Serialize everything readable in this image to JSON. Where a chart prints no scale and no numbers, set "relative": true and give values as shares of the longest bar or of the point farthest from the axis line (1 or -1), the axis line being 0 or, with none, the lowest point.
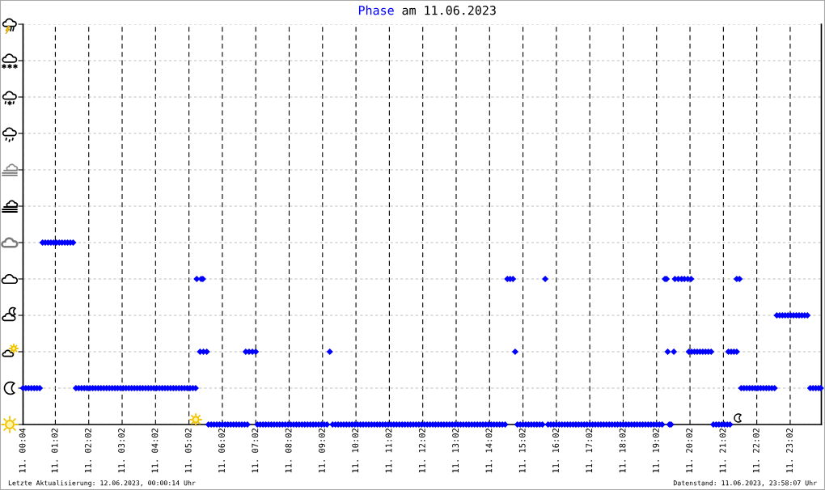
{
  "chart_data": {
    "type": "scatter",
    "title": "Phase am 11.06.2023",
    "relative": true,
    "x": [
      "2023-06-11T00:04",
      "2023-06-11T00:09",
      "2023-06-11T00:14",
      "2023-06-11T00:19",
      "2023-06-11T00:24",
      "2023-06-11T00:29",
      "2023-06-11T00:34",
      "2023-06-11T00:39",
      "2023-06-11T00:44",
      "2023-06-11T00:49",
      "2023-06-11T00:54",
      "2023-06-11T00:59",
      "2023-06-11T01:04",
      "2023-06-11T01:09",
      "2023-06-11T01:14",
      "2023-06-11T01:19",
      "2023-06-11T01:24",
      "2023-06-11T01:29",
      "2023-06-11T01:34",
      "2023-06-11T01:39",
      "2023-06-11T01:44",
      "2023-06-11T01:49",
      "2023-06-11T01:54",
      "2023-06-11T01:59",
      "2023-06-11T02:04",
      "2023-06-11T02:09",
      "2023-06-11T02:14",
      "2023-06-11T02:19",
      "2023-06-11T02:24",
      "2023-06-11T02:29",
      "2023-06-11T02:34",
      "2023-06-11T02:39",
      "2023-06-11T02:44",
      "2023-06-11T02:49",
      "2023-06-11T02:54",
      "2023-06-11T02:59",
      "2023-06-11T03:04",
      "2023-06-11T03:09",
      "2023-06-11T03:14",
      "2023-06-11T03:19",
      "2023-06-11T03:24",
      "2023-06-11T03:29",
      "2023-06-11T03:34",
      "2023-06-11T03:39",
      "2023-06-11T03:44",
      "2023-06-11T03:49",
      "2023-06-11T03:54",
      "2023-06-11T03:59",
      "2023-06-11T04:04",
      "2023-06-11T04:09",
      "2023-06-11T04:14",
      "2023-06-11T04:19",
      "2023-06-11T04:24",
      "2023-06-11T04:29",
      "2023-06-11T04:34",
      "2023-06-11T04:39",
      "2023-06-11T04:44",
      "2023-06-11T04:49",
      "2023-06-11T04:54",
      "2023-06-11T04:59",
      "2023-06-11T05:04",
      "2023-06-11T05:09",
      "2023-06-11T05:14",
      "2023-06-11T05:16",
      "2023-06-11T05:24",
      "2023-06-11T05:27",
      "2023-06-11T05:22",
      "2023-06-11T05:28",
      "2023-06-11T05:34",
      "2023-06-11T05:37",
      "2023-06-11T05:42",
      "2023-06-11T05:47",
      "2023-06-11T05:52",
      "2023-06-11T05:57",
      "2023-06-11T06:02",
      "2023-06-11T06:07",
      "2023-06-11T06:12",
      "2023-06-11T06:17",
      "2023-06-11T06:22",
      "2023-06-11T06:27",
      "2023-06-11T06:32",
      "2023-06-11T06:37",
      "2023-06-11T06:42",
      "2023-06-11T06:47",
      "2023-06-11T06:44",
      "2023-06-11T06:50",
      "2023-06-11T06:56",
      "2023-06-11T07:02",
      "2023-06-11T07:05",
      "2023-06-11T07:10",
      "2023-06-11T07:15",
      "2023-06-11T07:20",
      "2023-06-11T07:25",
      "2023-06-11T07:30",
      "2023-06-11T07:35",
      "2023-06-11T07:40",
      "2023-06-11T07:45",
      "2023-06-11T07:50",
      "2023-06-11T07:55",
      "2023-06-11T08:00",
      "2023-06-11T08:05",
      "2023-06-11T08:10",
      "2023-06-11T08:15",
      "2023-06-11T08:20",
      "2023-06-11T08:25",
      "2023-06-11T08:30",
      "2023-06-11T08:35",
      "2023-06-11T08:40",
      "2023-06-11T08:45",
      "2023-06-11T08:50",
      "2023-06-11T08:55",
      "2023-06-11T09:00",
      "2023-06-11T09:05",
      "2023-06-11T09:10",
      "2023-06-11T09:20",
      "2023-06-11T09:25",
      "2023-06-11T09:30",
      "2023-06-11T09:35",
      "2023-06-11T09:40",
      "2023-06-11T09:45",
      "2023-06-11T09:50",
      "2023-06-11T09:55",
      "2023-06-11T10:00",
      "2023-06-11T10:05",
      "2023-06-11T10:10",
      "2023-06-11T10:15",
      "2023-06-11T10:20",
      "2023-06-11T10:25",
      "2023-06-11T10:30",
      "2023-06-11T10:35",
      "2023-06-11T10:40",
      "2023-06-11T10:45",
      "2023-06-11T10:50",
      "2023-06-11T10:55",
      "2023-06-11T11:00",
      "2023-06-11T11:05",
      "2023-06-11T11:10",
      "2023-06-11T11:15",
      "2023-06-11T11:20",
      "2023-06-11T11:25",
      "2023-06-11T11:30",
      "2023-06-11T11:35",
      "2023-06-11T11:40",
      "2023-06-11T11:45",
      "2023-06-11T11:50",
      "2023-06-11T11:55",
      "2023-06-11T12:00",
      "2023-06-11T12:05",
      "2023-06-11T12:10",
      "2023-06-11T12:15",
      "2023-06-11T12:20",
      "2023-06-11T12:25",
      "2023-06-11T12:30",
      "2023-06-11T12:35",
      "2023-06-11T12:40",
      "2023-06-11T12:45",
      "2023-06-11T12:50",
      "2023-06-11T12:55",
      "2023-06-11T13:00",
      "2023-06-11T13:05",
      "2023-06-11T13:10",
      "2023-06-11T13:15",
      "2023-06-11T13:20",
      "2023-06-11T13:25",
      "2023-06-11T13:30",
      "2023-06-11T13:35",
      "2023-06-11T13:40",
      "2023-06-11T13:45",
      "2023-06-11T13:50",
      "2023-06-11T13:55",
      "2023-06-11T14:00",
      "2023-06-11T14:05",
      "2023-06-11T14:10",
      "2023-06-11T14:15",
      "2023-06-11T14:20",
      "2023-06-11T14:25",
      "2023-06-11T14:30",
      "2023-06-11T09:15",
      "2023-06-11T14:34",
      "2023-06-11T14:39",
      "2023-06-11T14:44",
      "2023-06-11T14:48",
      "2023-06-11T14:52",
      "2023-06-11T14:57",
      "2023-06-11T15:02",
      "2023-06-11T15:07",
      "2023-06-11T15:12",
      "2023-06-11T15:17",
      "2023-06-11T15:22",
      "2023-06-11T15:27",
      "2023-06-11T15:32",
      "2023-06-11T15:37",
      "2023-06-11T15:47",
      "2023-06-11T15:52",
      "2023-06-11T15:57",
      "2023-06-11T16:02",
      "2023-06-11T16:07",
      "2023-06-11T16:12",
      "2023-06-11T16:17",
      "2023-06-11T16:22",
      "2023-06-11T16:27",
      "2023-06-11T16:32",
      "2023-06-11T16:37",
      "2023-06-11T16:42",
      "2023-06-11T16:47",
      "2023-06-11T16:52",
      "2023-06-11T16:57",
      "2023-06-11T17:02",
      "2023-06-11T17:07",
      "2023-06-11T17:12",
      "2023-06-11T17:17",
      "2023-06-11T17:22",
      "2023-06-11T17:27",
      "2023-06-11T17:32",
      "2023-06-11T17:37",
      "2023-06-11T17:42",
      "2023-06-11T17:47",
      "2023-06-11T17:52",
      "2023-06-11T17:57",
      "2023-06-11T18:02",
      "2023-06-11T18:07",
      "2023-06-11T18:12",
      "2023-06-11T18:17",
      "2023-06-11T18:22",
      "2023-06-11T18:27",
      "2023-06-11T18:32",
      "2023-06-11T18:37",
      "2023-06-11T18:42",
      "2023-06-11T18:47",
      "2023-06-11T18:52",
      "2023-06-11T18:57",
      "2023-06-11T19:02",
      "2023-06-11T19:07",
      "2023-06-11T19:12",
      "2023-06-11T15:42",
      "2023-06-11T19:17",
      "2023-06-11T19:20",
      "2023-06-11T19:22",
      "2023-06-11T19:33",
      "2023-06-11T19:25",
      "2023-06-11T19:28",
      "2023-06-11T19:35",
      "2023-06-11T19:41",
      "2023-06-11T19:47",
      "2023-06-11T19:52",
      "2023-06-11T19:58",
      "2023-06-11T20:04",
      "2023-06-11T20:00",
      "2023-06-11T20:05",
      "2023-06-11T20:10",
      "2023-06-11T20:15",
      "2023-06-11T20:20",
      "2023-06-11T20:25",
      "2023-06-11T20:30",
      "2023-06-11T20:35",
      "2023-06-11T20:40",
      "2023-06-11T20:44",
      "2023-06-11T20:49",
      "2023-06-11T20:54",
      "2023-06-11T20:59",
      "2023-06-11T21:04",
      "2023-06-11T21:09",
      "2023-06-11T21:14",
      "2023-06-11T21:11",
      "2023-06-11T21:16",
      "2023-06-11T21:21",
      "2023-06-11T21:26",
      "2023-06-11T21:26",
      "2023-06-11T21:31",
      "2023-06-11T21:34",
      "2023-06-11T21:39",
      "2023-06-11T21:44",
      "2023-06-11T21:49",
      "2023-06-11T21:54",
      "2023-06-11T21:59",
      "2023-06-11T22:04",
      "2023-06-11T22:09",
      "2023-06-11T22:14",
      "2023-06-11T22:19",
      "2023-06-11T22:24",
      "2023-06-11T22:29",
      "2023-06-11T22:34",
      "2023-06-11T22:38",
      "2023-06-11T22:43",
      "2023-06-11T22:48",
      "2023-06-11T22:53",
      "2023-06-11T22:58",
      "2023-06-11T23:03",
      "2023-06-11T23:08",
      "2023-06-11T23:13",
      "2023-06-11T23:18",
      "2023-06-11T23:23",
      "2023-06-11T23:28",
      "2023-06-11T23:33",
      "2023-06-11T23:38",
      "2023-06-11T23:43",
      "2023-06-11T23:48",
      "2023-06-11T23:53",
      "2023-06-11T23:57"
    ],
    "values": [
      0.2,
      0.2,
      0.2,
      0.2,
      0.2,
      0.2,
      0.2,
      1,
      1,
      1,
      1,
      1,
      1,
      1,
      1,
      1,
      1,
      1,
      1,
      0.2,
      0.2,
      0.2,
      0.2,
      0.2,
      0.2,
      0.2,
      0.2,
      0.2,
      0.2,
      0.2,
      0.2,
      0.2,
      0.2,
      0.2,
      0.2,
      0.2,
      0.2,
      0.2,
      0.2,
      0.2,
      0.2,
      0.2,
      0.2,
      0.2,
      0.2,
      0.2,
      0.2,
      0.2,
      0.2,
      0.2,
      0.2,
      0.2,
      0.2,
      0.2,
      0.2,
      0.2,
      0.2,
      0.2,
      0.2,
      0.2,
      0.2,
      0.2,
      0.2,
      0.8,
      0.8,
      0.8,
      0.4,
      0.4,
      0.4,
      0,
      0,
      0,
      0,
      0,
      0,
      0,
      0,
      0,
      0,
      0,
      0,
      0,
      0,
      0,
      0.4,
      0.4,
      0.4,
      0.4,
      0,
      0,
      0,
      0,
      0,
      0,
      0,
      0,
      0,
      0,
      0,
      0,
      0,
      0,
      0,
      0,
      0,
      0,
      0,
      0,
      0,
      0,
      0,
      0,
      0,
      0,
      0,
      0,
      0,
      0,
      0,
      0,
      0,
      0,
      0,
      0,
      0,
      0,
      0,
      0,
      0,
      0,
      0,
      0,
      0,
      0,
      0,
      0,
      0,
      0,
      0,
      0,
      0,
      0,
      0,
      0,
      0,
      0,
      0,
      0,
      0,
      0,
      0,
      0,
      0,
      0,
      0,
      0,
      0,
      0,
      0,
      0,
      0,
      0,
      0,
      0,
      0,
      0,
      0,
      0,
      0,
      0,
      0,
      0,
      0,
      0,
      0,
      0,
      0,
      0.4,
      0.8,
      0.8,
      0.8,
      0.4,
      0,
      0,
      0,
      0,
      0,
      0,
      0,
      0,
      0,
      0,
      0,
      0,
      0,
      0,
      0,
      0,
      0,
      0,
      0,
      0,
      0,
      0,
      0,
      0,
      0,
      0,
      0,
      0,
      0,
      0,
      0,
      0,
      0,
      0,
      0,
      0,
      0,
      0,
      0,
      0,
      0,
      0,
      0,
      0,
      0,
      0,
      0,
      0,
      0,
      0,
      0,
      0,
      0.8,
      0.8,
      0.8,
      0.4,
      0.4,
      0,
      0,
      0.8,
      0.8,
      0.8,
      0.8,
      0.8,
      0.8,
      0.4,
      0.4,
      0.4,
      0.4,
      0.4,
      0.4,
      0.4,
      0.4,
      0.4,
      0,
      0,
      0,
      0,
      0,
      0,
      0,
      0.4,
      0.4,
      0.4,
      0.4,
      0.8,
      0.8,
      0.2,
      0.2,
      0.2,
      0.2,
      0.2,
      0.2,
      0.2,
      0.2,
      0.2,
      0.2,
      0.2,
      0.2,
      0.2,
      0.6,
      0.6,
      0.6,
      0.6,
      0.6,
      0.6,
      0.6,
      0.6,
      0.6,
      0.6,
      0.6,
      0.6,
      0.2,
      0.2,
      0.2,
      0.2,
      0.2
    ],
    "color": "#0000ff",
    "marker": "diamond",
    "xlim": [
      "2023-06-11T00:04",
      "2023-06-11T23:58"
    ],
    "xticks": [
      {
        "value": "2023-06-11T00:04",
        "label": "11. 00:04"
      },
      {
        "value": "2023-06-11T01:02",
        "label": "11. 01:02"
      },
      {
        "value": "2023-06-11T02:02",
        "label": "11. 02:02"
      },
      {
        "value": "2023-06-11T03:02",
        "label": "11. 03:02"
      },
      {
        "value": "2023-06-11T04:02",
        "label": "11. 04:02"
      },
      {
        "value": "2023-06-11T05:02",
        "label": "11. 05:02"
      },
      {
        "value": "2023-06-11T06:02",
        "label": "11. 06:02"
      },
      {
        "value": "2023-06-11T07:02",
        "label": "11. 07:02"
      },
      {
        "value": "2023-06-11T08:02",
        "label": "11. 08:02"
      },
      {
        "value": "2023-06-11T09:02",
        "label": "11. 09:02"
      },
      {
        "value": "2023-06-11T10:02",
        "label": "11. 10:02"
      },
      {
        "value": "2023-06-11T11:02",
        "label": "11. 11:02"
      },
      {
        "value": "2023-06-11T12:02",
        "label": "11. 12:02"
      },
      {
        "value": "2023-06-11T13:02",
        "label": "11. 13:02"
      },
      {
        "value": "2023-06-11T14:02",
        "label": "11. 14:02"
      },
      {
        "value": "2023-06-11T15:02",
        "label": "11. 15:02"
      },
      {
        "value": "2023-06-11T16:02",
        "label": "11. 16:02"
      },
      {
        "value": "2023-06-11T17:02",
        "label": "11. 17:02"
      },
      {
        "value": "2023-06-11T18:02",
        "label": "11. 18:02"
      },
      {
        "value": "2023-06-11T19:02",
        "label": "11. 19:02"
      },
      {
        "value": "2023-06-11T20:02",
        "label": "11. 20:02"
      },
      {
        "value": "2023-06-11T21:02",
        "label": "11. 21:02"
      },
      {
        "value": "2023-06-11T22:02",
        "label": "11. 22:02"
      },
      {
        "value": "2023-06-11T23:02",
        "label": "11. 23:02"
      }
    ],
    "tick_labels": "x",
    "grid": true,
    "annotations": [
      "Letzte Aktualisierung: 12.06.2023, 00:00:14 Uhr",
      "Datenstand: 11.06.2023, 23:58:07 Uhr"
    ]
  }
}
